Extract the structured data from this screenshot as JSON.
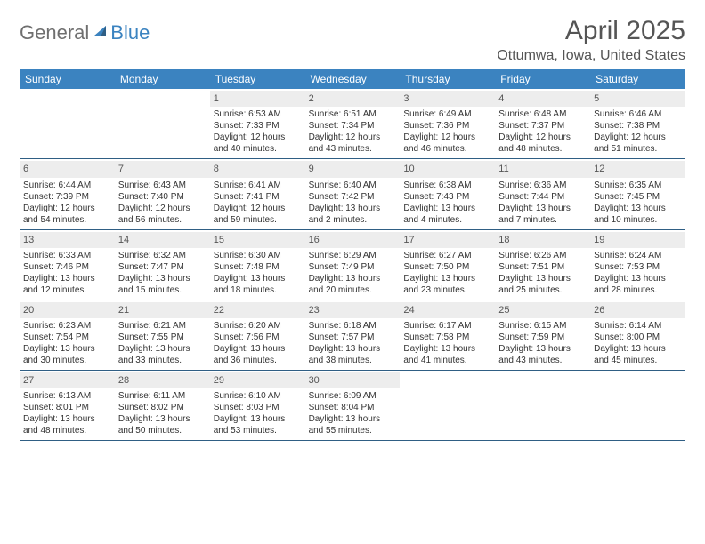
{
  "logo": {
    "general": "General",
    "blue": "Blue"
  },
  "title": "April 2025",
  "location": "Ottumwa, Iowa, United States",
  "colors": {
    "header_bg": "#3b83c0",
    "header_text": "#ffffff",
    "daynum_bg": "#ededed",
    "week_border": "#2f5e84",
    "body_text": "#333333",
    "title_text": "#555555"
  },
  "fonts": {
    "title_size": 30,
    "location_size": 16,
    "header_size": 12,
    "cell_size": 10
  },
  "day_labels": [
    "Sunday",
    "Monday",
    "Tuesday",
    "Wednesday",
    "Thursday",
    "Friday",
    "Saturday"
  ],
  "weeks": [
    [
      null,
      null,
      {
        "n": "1",
        "sr": "Sunrise: 6:53 AM",
        "ss": "Sunset: 7:33 PM",
        "d1": "Daylight: 12 hours",
        "d2": "and 40 minutes."
      },
      {
        "n": "2",
        "sr": "Sunrise: 6:51 AM",
        "ss": "Sunset: 7:34 PM",
        "d1": "Daylight: 12 hours",
        "d2": "and 43 minutes."
      },
      {
        "n": "3",
        "sr": "Sunrise: 6:49 AM",
        "ss": "Sunset: 7:36 PM",
        "d1": "Daylight: 12 hours",
        "d2": "and 46 minutes."
      },
      {
        "n": "4",
        "sr": "Sunrise: 6:48 AM",
        "ss": "Sunset: 7:37 PM",
        "d1": "Daylight: 12 hours",
        "d2": "and 48 minutes."
      },
      {
        "n": "5",
        "sr": "Sunrise: 6:46 AM",
        "ss": "Sunset: 7:38 PM",
        "d1": "Daylight: 12 hours",
        "d2": "and 51 minutes."
      }
    ],
    [
      {
        "n": "6",
        "sr": "Sunrise: 6:44 AM",
        "ss": "Sunset: 7:39 PM",
        "d1": "Daylight: 12 hours",
        "d2": "and 54 minutes."
      },
      {
        "n": "7",
        "sr": "Sunrise: 6:43 AM",
        "ss": "Sunset: 7:40 PM",
        "d1": "Daylight: 12 hours",
        "d2": "and 56 minutes."
      },
      {
        "n": "8",
        "sr": "Sunrise: 6:41 AM",
        "ss": "Sunset: 7:41 PM",
        "d1": "Daylight: 12 hours",
        "d2": "and 59 minutes."
      },
      {
        "n": "9",
        "sr": "Sunrise: 6:40 AM",
        "ss": "Sunset: 7:42 PM",
        "d1": "Daylight: 13 hours",
        "d2": "and 2 minutes."
      },
      {
        "n": "10",
        "sr": "Sunrise: 6:38 AM",
        "ss": "Sunset: 7:43 PM",
        "d1": "Daylight: 13 hours",
        "d2": "and 4 minutes."
      },
      {
        "n": "11",
        "sr": "Sunrise: 6:36 AM",
        "ss": "Sunset: 7:44 PM",
        "d1": "Daylight: 13 hours",
        "d2": "and 7 minutes."
      },
      {
        "n": "12",
        "sr": "Sunrise: 6:35 AM",
        "ss": "Sunset: 7:45 PM",
        "d1": "Daylight: 13 hours",
        "d2": "and 10 minutes."
      }
    ],
    [
      {
        "n": "13",
        "sr": "Sunrise: 6:33 AM",
        "ss": "Sunset: 7:46 PM",
        "d1": "Daylight: 13 hours",
        "d2": "and 12 minutes."
      },
      {
        "n": "14",
        "sr": "Sunrise: 6:32 AM",
        "ss": "Sunset: 7:47 PM",
        "d1": "Daylight: 13 hours",
        "d2": "and 15 minutes."
      },
      {
        "n": "15",
        "sr": "Sunrise: 6:30 AM",
        "ss": "Sunset: 7:48 PM",
        "d1": "Daylight: 13 hours",
        "d2": "and 18 minutes."
      },
      {
        "n": "16",
        "sr": "Sunrise: 6:29 AM",
        "ss": "Sunset: 7:49 PM",
        "d1": "Daylight: 13 hours",
        "d2": "and 20 minutes."
      },
      {
        "n": "17",
        "sr": "Sunrise: 6:27 AM",
        "ss": "Sunset: 7:50 PM",
        "d1": "Daylight: 13 hours",
        "d2": "and 23 minutes."
      },
      {
        "n": "18",
        "sr": "Sunrise: 6:26 AM",
        "ss": "Sunset: 7:51 PM",
        "d1": "Daylight: 13 hours",
        "d2": "and 25 minutes."
      },
      {
        "n": "19",
        "sr": "Sunrise: 6:24 AM",
        "ss": "Sunset: 7:53 PM",
        "d1": "Daylight: 13 hours",
        "d2": "and 28 minutes."
      }
    ],
    [
      {
        "n": "20",
        "sr": "Sunrise: 6:23 AM",
        "ss": "Sunset: 7:54 PM",
        "d1": "Daylight: 13 hours",
        "d2": "and 30 minutes."
      },
      {
        "n": "21",
        "sr": "Sunrise: 6:21 AM",
        "ss": "Sunset: 7:55 PM",
        "d1": "Daylight: 13 hours",
        "d2": "and 33 minutes."
      },
      {
        "n": "22",
        "sr": "Sunrise: 6:20 AM",
        "ss": "Sunset: 7:56 PM",
        "d1": "Daylight: 13 hours",
        "d2": "and 36 minutes."
      },
      {
        "n": "23",
        "sr": "Sunrise: 6:18 AM",
        "ss": "Sunset: 7:57 PM",
        "d1": "Daylight: 13 hours",
        "d2": "and 38 minutes."
      },
      {
        "n": "24",
        "sr": "Sunrise: 6:17 AM",
        "ss": "Sunset: 7:58 PM",
        "d1": "Daylight: 13 hours",
        "d2": "and 41 minutes."
      },
      {
        "n": "25",
        "sr": "Sunrise: 6:15 AM",
        "ss": "Sunset: 7:59 PM",
        "d1": "Daylight: 13 hours",
        "d2": "and 43 minutes."
      },
      {
        "n": "26",
        "sr": "Sunrise: 6:14 AM",
        "ss": "Sunset: 8:00 PM",
        "d1": "Daylight: 13 hours",
        "d2": "and 45 minutes."
      }
    ],
    [
      {
        "n": "27",
        "sr": "Sunrise: 6:13 AM",
        "ss": "Sunset: 8:01 PM",
        "d1": "Daylight: 13 hours",
        "d2": "and 48 minutes."
      },
      {
        "n": "28",
        "sr": "Sunrise: 6:11 AM",
        "ss": "Sunset: 8:02 PM",
        "d1": "Daylight: 13 hours",
        "d2": "and 50 minutes."
      },
      {
        "n": "29",
        "sr": "Sunrise: 6:10 AM",
        "ss": "Sunset: 8:03 PM",
        "d1": "Daylight: 13 hours",
        "d2": "and 53 minutes."
      },
      {
        "n": "30",
        "sr": "Sunrise: 6:09 AM",
        "ss": "Sunset: 8:04 PM",
        "d1": "Daylight: 13 hours",
        "d2": "and 55 minutes."
      },
      null,
      null,
      null
    ]
  ]
}
